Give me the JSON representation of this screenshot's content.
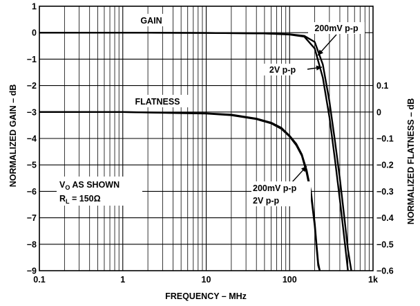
{
  "chart_data": {
    "type": "line",
    "xlabel": "FREQUENCY – MHz",
    "ylabel_left": "NORMALIZED GAIN – dB",
    "ylabel_right": "NORMALIZED FLATNESS – dB",
    "x_scale": "log",
    "xlim": [
      0.1,
      1000
    ],
    "ylim_left": [
      -9,
      1
    ],
    "ylim_right": [
      -0.6,
      0.1
    ],
    "x_ticks": [
      "0.1",
      "1",
      "10",
      "100",
      "1k"
    ],
    "y_ticks_left": [
      "1",
      "0",
      "−1",
      "−2",
      "−3",
      "−4",
      "−5",
      "−6",
      "−7",
      "−8",
      "−9"
    ],
    "y_ticks_right": [
      "0.1",
      "0",
      "−0.1",
      "−0.2",
      "−0.3",
      "−0.4",
      "−0.5",
      "−0.6"
    ],
    "grid": true,
    "series": [
      {
        "axis": "left",
        "label": "200mV p-p",
        "x": [
          0.1,
          1,
          10,
          50,
          100,
          150,
          200,
          250,
          300,
          350,
          400,
          450,
          500,
          550
        ],
        "y": [
          0,
          0,
          -0.01,
          -0.03,
          -0.06,
          -0.12,
          -0.35,
          -1.2,
          -2.6,
          -4.1,
          -5.5,
          -6.9,
          -8.2,
          -9
        ]
      },
      {
        "axis": "left",
        "label": "2V p-p",
        "x": [
          0.1,
          1,
          10,
          50,
          100,
          150,
          200,
          250,
          300,
          350,
          400,
          450,
          500
        ],
        "y": [
          0,
          0,
          -0.01,
          -0.03,
          -0.07,
          -0.15,
          -0.6,
          -1.7,
          -3.2,
          -4.8,
          -6.3,
          -7.7,
          -9
        ]
      },
      {
        "axis": "right",
        "label": "200mV p-p",
        "x": [
          0.1,
          1,
          10,
          20,
          40,
          60,
          80,
          100,
          120,
          140,
          160,
          180,
          200,
          210,
          220,
          230
        ],
        "y": [
          0,
          0,
          -0.005,
          -0.01,
          -0.025,
          -0.04,
          -0.06,
          -0.09,
          -0.12,
          -0.16,
          -0.22,
          -0.3,
          -0.42,
          -0.5,
          -0.57,
          -0.6
        ]
      },
      {
        "axis": "right",
        "label": "2V p-p",
        "x": [
          0.1,
          1,
          10,
          20,
          40,
          60,
          80,
          100,
          120,
          140,
          160,
          180,
          200,
          210,
          220,
          230
        ],
        "y": [
          0,
          0,
          -0.006,
          -0.012,
          -0.027,
          -0.043,
          -0.064,
          -0.093,
          -0.125,
          -0.165,
          -0.23,
          -0.31,
          -0.43,
          -0.51,
          -0.58,
          -0.6
        ]
      }
    ],
    "annotations": {
      "gain": "GAIN",
      "flatness": "FLATNESS",
      "gain_200mv": "200mV p-p",
      "gain_2v": "2V p-p",
      "flat_200mv": "200mV p-p",
      "flat_2v": "2V p-p",
      "conditions_line1_main": "V",
      "conditions_line1_sub": "O",
      "conditions_line1_rest": " AS SHOWN",
      "conditions_line2_main": "R",
      "conditions_line2_sub": "L",
      "conditions_line2_rest": " = 150Ω"
    }
  }
}
